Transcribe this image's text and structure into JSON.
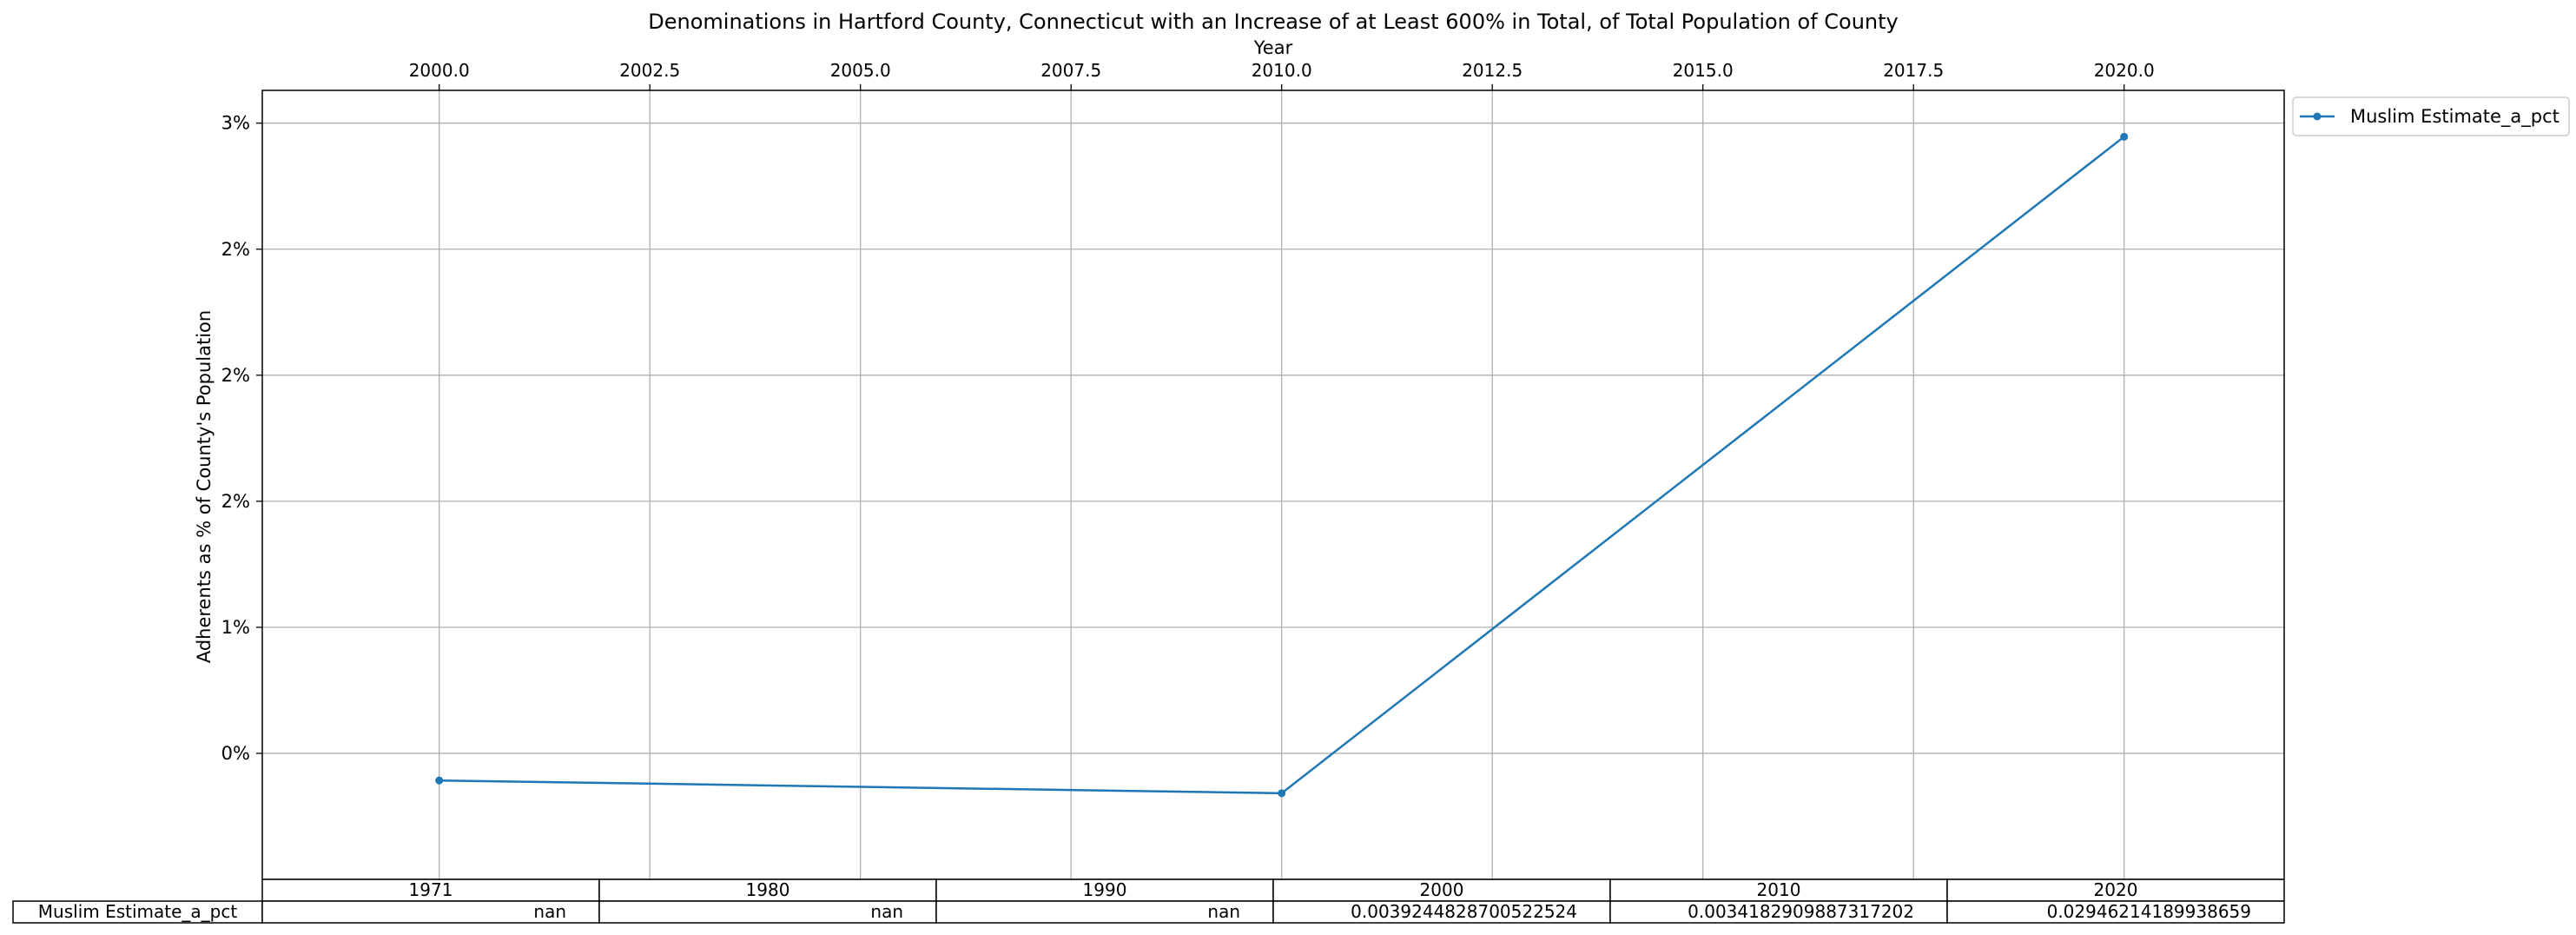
{
  "chart_data": {
    "type": "line",
    "title": "Denominations in Hartford County, Connecticut with an Increase of at Least 600% in Total, of Total Population of County",
    "xlabel": "Year",
    "ylabel": "Adherents as % of County's Population",
    "xlim": [
      1997.9,
      2021.9
    ],
    "ylim": [
      0.0,
      0.0313
    ],
    "x_ticks": [
      2000.0,
      2002.5,
      2005.0,
      2007.5,
      2010.0,
      2012.5,
      2015.0,
      2017.5,
      2020.0
    ],
    "x_tick_labels": [
      "2000.0",
      "2002.5",
      "2005.0",
      "2007.5",
      "2010.0",
      "2012.5",
      "2015.0",
      "2017.5",
      "2020.0"
    ],
    "y_ticks": [
      0.005,
      0.01,
      0.015,
      0.02,
      0.025,
      0.03
    ],
    "y_tick_labels": [
      "0%",
      "1%",
      "2%",
      "2%",
      "2%",
      "3%"
    ],
    "x_axis_position": "top",
    "grid": true,
    "legend_position": "outside-top-right",
    "series": [
      {
        "name": "Muslim Estimate_a_pct",
        "color": "#1f77b4",
        "x": [
          2000,
          2010,
          2020
        ],
        "values": [
          0.003924,
          0.003418,
          0.029462
        ]
      }
    ],
    "table": {
      "col_labels": [
        "1971",
        "1980",
        "1990",
        "2000",
        "2010",
        "2020"
      ],
      "rows": [
        {
          "label": "Muslim Estimate_a_pct",
          "cells": [
            "nan",
            "nan",
            "nan",
            "0.003924482870052252​4",
            "0.0034182909887317202",
            "0.02946214189938659"
          ]
        }
      ]
    }
  }
}
